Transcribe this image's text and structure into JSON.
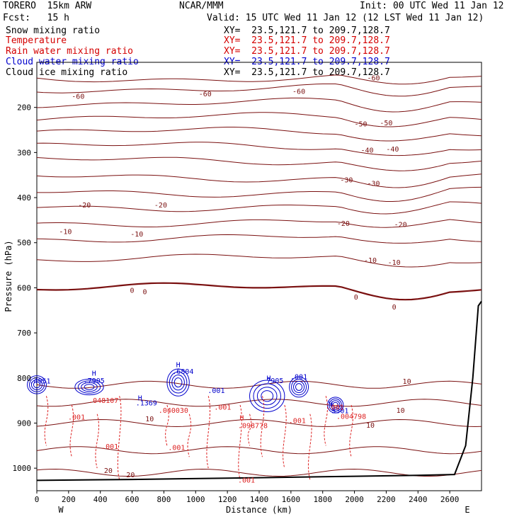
{
  "header": {
    "model": "TORERO  15km ARW",
    "org": "NCAR/MMM",
    "init": "Init: 00 UTC Wed 11 Jan 12",
    "fcst": "Fcst:   15 h",
    "valid": "Valid: 15 UTC Wed 11 Jan 12 (12 LST Wed 11 Jan 12)"
  },
  "fields": [
    {
      "name": "Snow mixing ratio",
      "xy": "XY=  23.5,121.7 to 209.7,128.7",
      "color": "#000000"
    },
    {
      "name": "Temperature",
      "xy": "XY=  23.5,121.7 to 209.7,128.7",
      "color": "#d40000"
    },
    {
      "name": "Rain water mixing ratio",
      "xy": "XY=  23.5,121.7 to 209.7,128.7",
      "color": "#d40000"
    },
    {
      "name": "Cloud water mixing ratio",
      "xy": "XY=  23.5,121.7 to 209.7,128.7",
      "color": "#0000cc"
    },
    {
      "name": "Cloud ice mixing ratio",
      "xy": "XY=  23.5,121.7 to 209.7,128.7",
      "color": "#000000"
    }
  ],
  "chart_data": {
    "type": "contour",
    "xlabel": "Distance (km)",
    "ylabel": "Pressure (hPa)",
    "xlim": [
      0,
      2800
    ],
    "ylim": [
      1050,
      100
    ],
    "x_ticks": [
      0,
      200,
      400,
      600,
      800,
      1000,
      1200,
      1400,
      1600,
      1800,
      2000,
      2200,
      2400,
      2600
    ],
    "y_ticks": [
      200,
      300,
      400,
      500,
      600,
      700,
      800,
      900,
      1000
    ],
    "x_end_labels": {
      "left": "W",
      "right": "E"
    },
    "temperature_contours": [
      {
        "level": -60,
        "pressure": 135
      },
      {
        "level": -60,
        "pressure": 158
      },
      {
        "level": -55,
        "pressure": 190
      },
      {
        "level": -50,
        "pressure": 222
      },
      {
        "level": -45,
        "pressure": 254
      },
      {
        "level": -40,
        "pressure": 286
      },
      {
        "level": -35,
        "pressure": 318
      },
      {
        "level": -30,
        "pressure": 355
      },
      {
        "level": -25,
        "pressure": 388
      },
      {
        "level": -20,
        "pressure": 420
      },
      {
        "level": -15,
        "pressure": 455
      },
      {
        "level": -10,
        "pressure": 490
      },
      {
        "level": -5,
        "pressure": 535
      },
      {
        "level": 0,
        "pressure": 600
      }
    ],
    "temperature_labels": [
      {
        "text": "-60",
        "x": 2120,
        "p": 140
      },
      {
        "text": "-60",
        "x": 260,
        "p": 181
      },
      {
        "text": "-60",
        "x": 1060,
        "p": 175
      },
      {
        "text": "-60",
        "x": 1650,
        "p": 170
      },
      {
        "text": "-50",
        "x": 2040,
        "p": 242
      },
      {
        "text": "-50",
        "x": 2200,
        "p": 240
      },
      {
        "text": "-40",
        "x": 2080,
        "p": 300
      },
      {
        "text": "-40",
        "x": 2240,
        "p": 298
      },
      {
        "text": "-30",
        "x": 1950,
        "p": 366
      },
      {
        "text": "-30",
        "x": 2120,
        "p": 374
      },
      {
        "text": "-20",
        "x": 300,
        "p": 422
      },
      {
        "text": "-20",
        "x": 780,
        "p": 422
      },
      {
        "text": "-20",
        "x": 1930,
        "p": 463
      },
      {
        "text": "-20",
        "x": 2290,
        "p": 465
      },
      {
        "text": "-10",
        "x": 180,
        "p": 481
      },
      {
        "text": "-10",
        "x": 630,
        "p": 486
      },
      {
        "text": "-10",
        "x": 2100,
        "p": 544
      },
      {
        "text": "-10",
        "x": 2250,
        "p": 549
      },
      {
        "text": "0",
        "x": 600,
        "p": 611
      },
      {
        "text": "0",
        "x": 680,
        "p": 614
      },
      {
        "text": "0",
        "x": 2010,
        "p": 626
      },
      {
        "text": "0",
        "x": 2250,
        "p": 648
      },
      {
        "text": "10",
        "x": 2330,
        "p": 813
      },
      {
        "text": "10",
        "x": 2290,
        "p": 877
      },
      {
        "text": "10",
        "x": 2100,
        "p": 910
      },
      {
        "text": "10",
        "x": 710,
        "p": 896
      },
      {
        "text": "20",
        "x": 450,
        "p": 1011
      },
      {
        "text": "20",
        "x": 590,
        "p": 1020
      }
    ],
    "cloud_labels": [
      {
        "text": "H",
        "x": 360,
        "p": 795
      },
      {
        "text": ".7905",
        "x": 360,
        "p": 811
      },
      {
        "text": ".4951",
        "x": 20,
        "p": 812
      },
      {
        "text": "H",
        "x": 890,
        "p": 776
      },
      {
        "text": ".6804",
        "x": 920,
        "p": 791
      },
      {
        "text": "H",
        "x": 650,
        "p": 850
      },
      {
        "text": ".1369",
        "x": 690,
        "p": 861
      },
      {
        "text": "H",
        "x": 1460,
        "p": 806
      },
      {
        "text": "7905",
        "x": 1500,
        "p": 811
      },
      {
        "text": "H",
        "x": 1850,
        "p": 863
      },
      {
        "text": "5301",
        "x": 1910,
        "p": 878
      },
      {
        "text": ".001",
        "x": 1650,
        "p": 803
      },
      {
        "text": ".001",
        "x": 1130,
        "p": 833
      }
    ],
    "rain_labels": [
      {
        "text": ".048107",
        "x": 420,
        "p": 855
      },
      {
        "text": ".040030",
        "x": 860,
        "p": 877
      },
      {
        "text": "H",
        "x": 1290,
        "p": 894
      },
      {
        "text": ".098778",
        "x": 1360,
        "p": 911
      },
      {
        "text": ".004798",
        "x": 1980,
        "p": 891
      },
      {
        "text": ".001",
        "x": 250,
        "p": 892
      },
      {
        "text": ".001",
        "x": 1170,
        "p": 870
      },
      {
        "text": ".001",
        "x": 1640,
        "p": 900
      },
      {
        "text": ".001",
        "x": 460,
        "p": 957
      },
      {
        "text": ".001",
        "x": 880,
        "p": 960
      },
      {
        "text": ".001",
        "x": 1320,
        "p": 1032
      },
      {
        "text": ".001",
        "x": 1880,
        "p": 870
      }
    ],
    "terrain": [
      [
        0,
        1027
      ],
      [
        600,
        1025
      ],
      [
        1200,
        1022
      ],
      [
        1800,
        1019
      ],
      [
        2400,
        1016
      ],
      [
        2630,
        1014
      ],
      [
        2700,
        950
      ],
      [
        2745,
        800
      ],
      [
        2780,
        640
      ],
      [
        2800,
        630
      ]
    ]
  }
}
